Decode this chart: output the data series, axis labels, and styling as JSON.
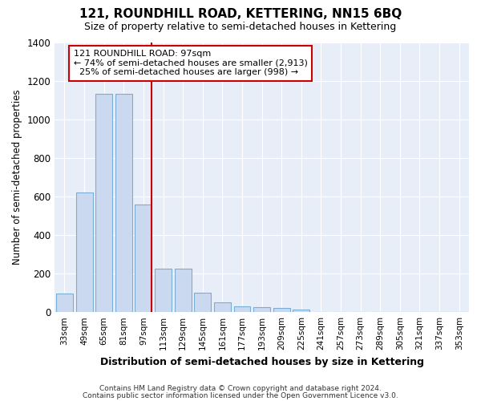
{
  "title": "121, ROUNDHILL ROAD, KETTERING, NN15 6BQ",
  "subtitle": "Size of property relative to semi-detached houses in Kettering",
  "xlabel": "Distribution of semi-detached houses by size in Kettering",
  "ylabel": "Number of semi-detached properties",
  "categories": [
    "33sqm",
    "49sqm",
    "65sqm",
    "81sqm",
    "97sqm",
    "113sqm",
    "129sqm",
    "145sqm",
    "161sqm",
    "177sqm",
    "193sqm",
    "209sqm",
    "225sqm",
    "241sqm",
    "257sqm",
    "273sqm",
    "289sqm",
    "305sqm",
    "321sqm",
    "337sqm",
    "353sqm"
  ],
  "values": [
    95,
    620,
    1130,
    1130,
    560,
    225,
    225,
    100,
    50,
    30,
    25,
    20,
    15,
    0,
    0,
    0,
    0,
    0,
    0,
    0,
    0
  ],
  "bar_color": "#cad9ef",
  "bar_edge_color": "#7aadd4",
  "red_line_index": 4,
  "property_label": "121 ROUNDHILL ROAD: 97sqm",
  "pct_smaller": 74,
  "n_smaller": 2913,
  "pct_larger": 25,
  "n_larger": 998,
  "annotation_box_edge_color": "#cc0000",
  "ylim": [
    0,
    1400
  ],
  "yticks": [
    0,
    200,
    400,
    600,
    800,
    1000,
    1200,
    1400
  ],
  "footer1": "Contains HM Land Registry data © Crown copyright and database right 2024.",
  "footer2": "Contains public sector information licensed under the Open Government Licence v3.0.",
  "fig_bg_color": "#ffffff",
  "plot_bg_color": "#e8eef8"
}
